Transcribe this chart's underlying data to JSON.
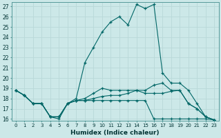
{
  "xlabel": "Humidex (Indice chaleur)",
  "background_color": "#cce8e8",
  "grid_color": "#b8d8d8",
  "line_color": "#006666",
  "xlim": [
    -0.5,
    23.5
  ],
  "ylim": [
    15.8,
    27.4
  ],
  "xticks": [
    0,
    1,
    2,
    3,
    4,
    5,
    6,
    7,
    8,
    9,
    10,
    11,
    12,
    13,
    14,
    15,
    16,
    17,
    18,
    19,
    20,
    21,
    22,
    23
  ],
  "yticks": [
    16,
    17,
    18,
    19,
    20,
    21,
    22,
    23,
    24,
    25,
    26,
    27
  ],
  "series": [
    [
      18.8,
      18.3,
      17.5,
      17.5,
      16.2,
      16.2,
      17.5,
      17.8,
      17.8,
      17.8,
      17.8,
      17.8,
      17.8,
      17.8,
      17.8,
      17.8,
      16.0,
      16.0,
      16.0,
      16.0,
      16.0,
      16.0,
      16.0,
      15.9
    ],
    [
      18.8,
      18.3,
      17.5,
      17.5,
      16.2,
      16.2,
      17.5,
      17.8,
      17.8,
      18.0,
      18.2,
      18.3,
      18.3,
      18.5,
      18.8,
      18.5,
      18.5,
      18.5,
      18.7,
      18.8,
      17.5,
      17.0,
      16.2,
      15.9
    ],
    [
      18.8,
      18.3,
      17.5,
      17.5,
      16.2,
      16.2,
      17.5,
      17.8,
      18.0,
      18.5,
      19.0,
      18.8,
      18.8,
      18.8,
      18.8,
      18.8,
      19.3,
      19.5,
      18.8,
      18.8,
      17.5,
      17.0,
      16.2,
      15.9
    ],
    [
      18.8,
      18.3,
      17.5,
      17.5,
      16.2,
      16.0,
      17.5,
      18.0,
      21.5,
      23.0,
      24.5,
      25.5,
      26.0,
      25.2,
      27.2,
      26.8,
      27.2,
      20.5,
      19.5,
      19.5,
      18.8,
      17.5,
      16.2,
      15.9
    ]
  ]
}
